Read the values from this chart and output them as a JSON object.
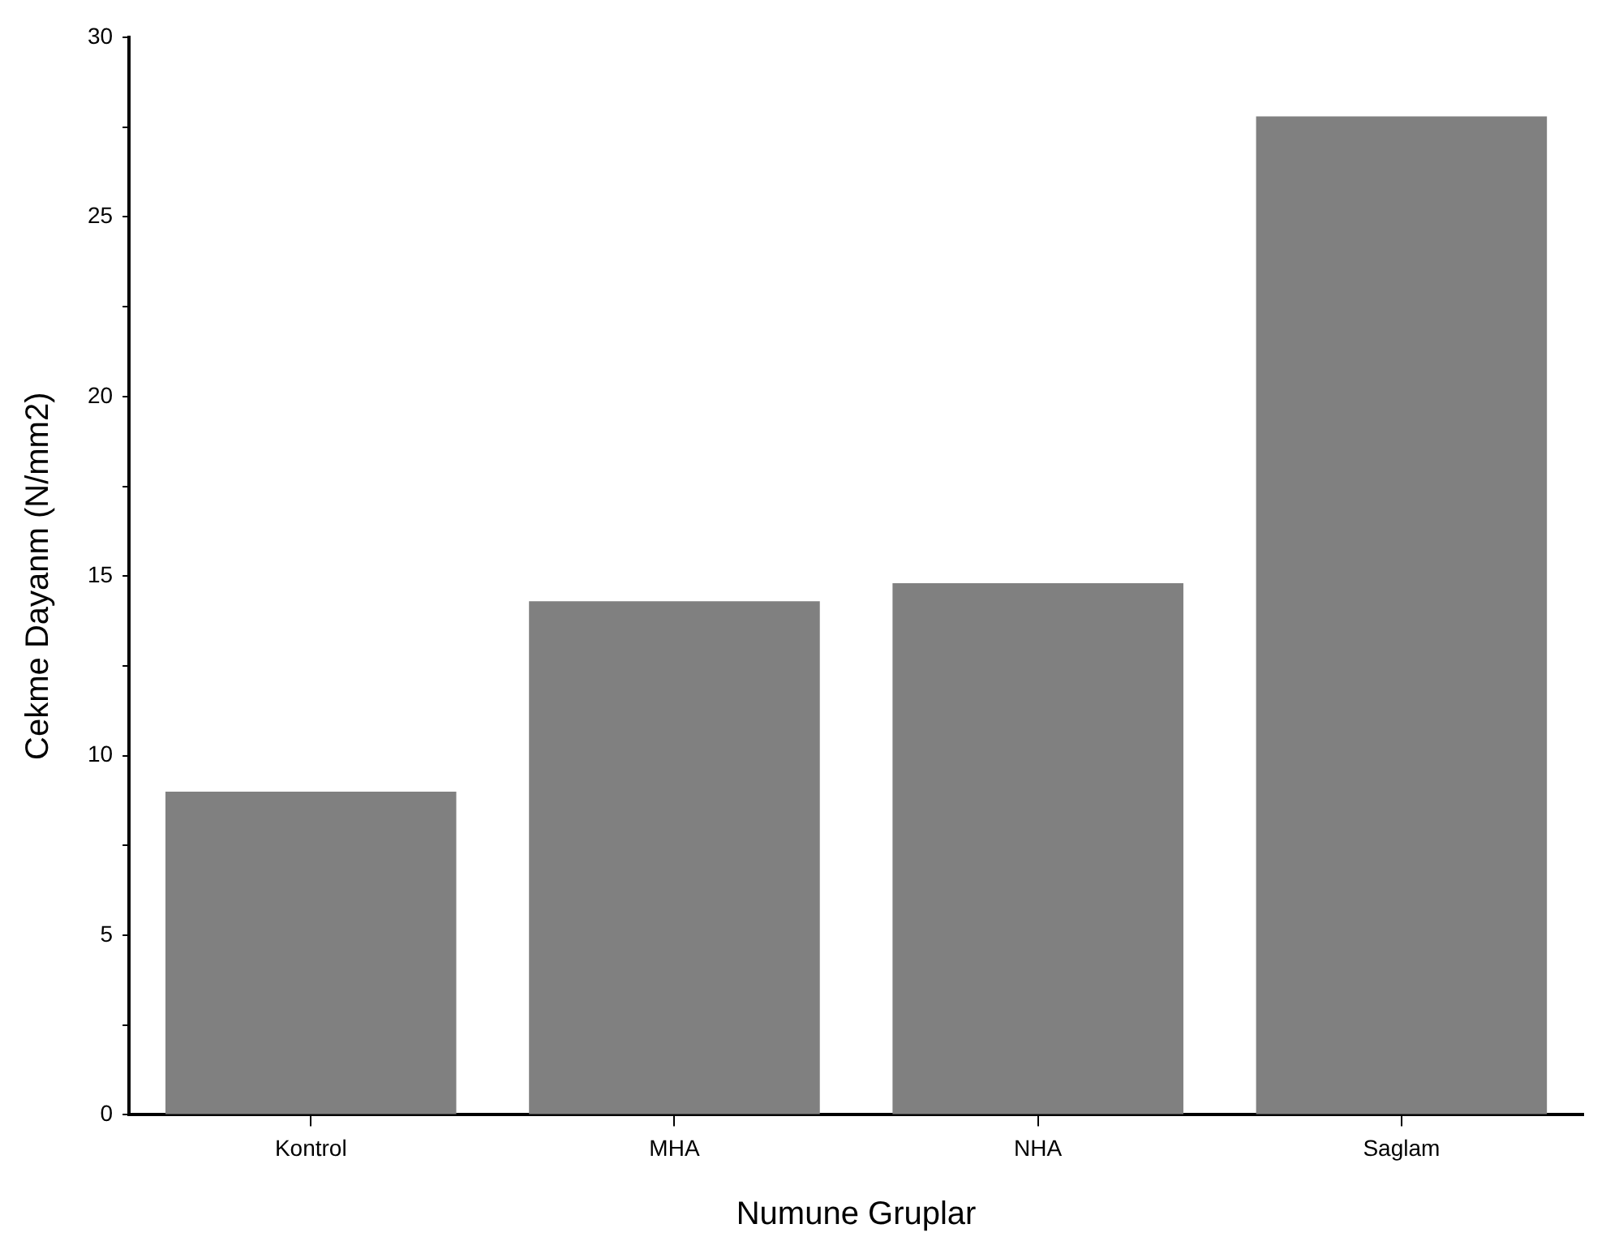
{
  "chart_data": {
    "type": "bar",
    "xlabel": "Numune Gruplar",
    "ylabel": "Cekme Dayanm (N/mm2)",
    "categories": [
      "Kontrol",
      "MHA",
      "NHA",
      "Saglam"
    ],
    "values": [
      9.0,
      14.3,
      14.8,
      27.8
    ],
    "color": "#808080",
    "ylim": [
      0,
      30
    ],
    "yticks": [
      0,
      {
        "value": 2.5,
        "label": null
      },
      5,
      {
        "value": 7.5,
        "label": null
      },
      10,
      {
        "value": 12.5,
        "label": null
      },
      15,
      {
        "value": 17.5,
        "label": null
      },
      20,
      {
        "value": 22.5,
        "label": null
      },
      25,
      {
        "value": 27.5,
        "label": null
      },
      30
    ],
    "grid": false,
    "legend": false
  }
}
